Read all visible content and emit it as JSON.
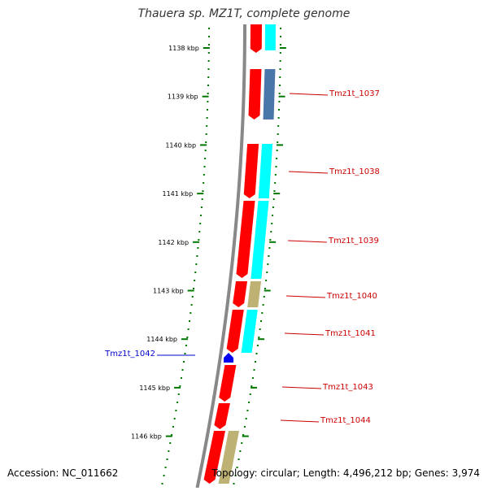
{
  "title": "Thauera sp. MZ1T, complete genome",
  "accession": "Accession: NC_011662",
  "topology": "Topology: circular; Length: 4,496,212 bp; Genes: 3,974",
  "colors": {
    "forward_cds": "#ff0000",
    "reverse_cyan": "#00ffff",
    "reverse_blue": "#4a77aa",
    "reverse_khaki": "#bdb173",
    "backbone": "#888888",
    "tick": "#007700",
    "label_red": "#cc0000",
    "label_blue": "#0000cc"
  },
  "kbp_ticks": [
    {
      "label": "1138 kbp",
      "pos": 1138
    },
    {
      "label": "1139 kbp",
      "pos": 1139
    },
    {
      "label": "1140 kbp",
      "pos": 1140
    },
    {
      "label": "1141 kbp",
      "pos": 1141
    },
    {
      "label": "1142 kbp",
      "pos": 1142
    },
    {
      "label": "1143 kbp",
      "pos": 1143
    },
    {
      "label": "1144 kbp",
      "pos": 1144
    },
    {
      "label": "1145 kbp",
      "pos": 1145
    },
    {
      "label": "1146 kbp",
      "pos": 1146
    }
  ],
  "gene_labels": [
    {
      "text": "Tmz1t_1037",
      "side": "right"
    },
    {
      "text": "Tmz1t_1038",
      "side": "right"
    },
    {
      "text": "Tmz1t_1039",
      "side": "right"
    },
    {
      "text": "Tmz1t_1040",
      "side": "right"
    },
    {
      "text": "Tmz1t_1041",
      "side": "right"
    },
    {
      "text": "Tmz1t_1042",
      "side": "left"
    },
    {
      "text": "Tmz1t_1043",
      "side": "right"
    },
    {
      "text": "Tmz1t_1044",
      "side": "right"
    }
  ]
}
